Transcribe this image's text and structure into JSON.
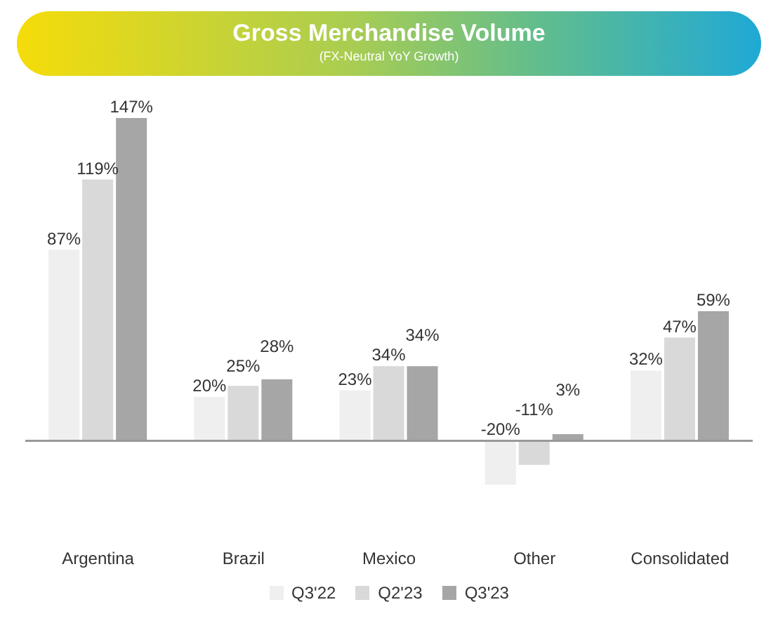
{
  "chart_data": {
    "type": "bar",
    "title": "Gross Merchandise Volume",
    "subtitle": "(FX-Neutral YoY Growth)",
    "categories": [
      "Argentina",
      "Brazil",
      "Mexico",
      "Other",
      "Consolidated"
    ],
    "series": [
      {
        "name": "Q3'22",
        "color": "#efefef",
        "values": [
          87,
          20,
          23,
          -20,
          32
        ],
        "value_labels": [
          "87%",
          "20%",
          "23%",
          "-20%",
          "32%"
        ]
      },
      {
        "name": "Q2'23",
        "color": "#d9d9d9",
        "values": [
          119,
          25,
          34,
          -11,
          47
        ],
        "value_labels": [
          "119%",
          "25%",
          "34%",
          "-11%",
          "47%"
        ]
      },
      {
        "name": "Q3'23",
        "color": "#a6a6a6",
        "values": [
          147,
          28,
          34,
          3,
          59
        ],
        "value_labels": [
          "147%",
          "28%",
          "34%",
          "3%",
          "59%"
        ]
      }
    ],
    "legend": "bottom",
    "grid": false
  }
}
